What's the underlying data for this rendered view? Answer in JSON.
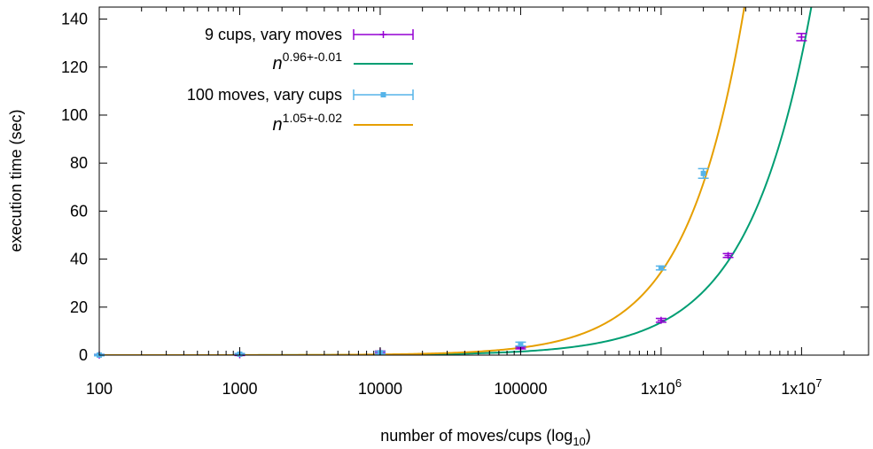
{
  "chart_data": {
    "type": "scatter",
    "xscale": "log",
    "xlim": [
      100,
      30000000
    ],
    "ylim": [
      0,
      145
    ],
    "xlabel": "number of moves/cups (log",
    "xlabel_sub": "10",
    "xlabel_suffix": ")",
    "ylabel": "execution time (sec)",
    "grid": false,
    "legend_position": "top-left",
    "x_ticks": [
      {
        "value": 100,
        "label": "100"
      },
      {
        "value": 1000,
        "label": "1000"
      },
      {
        "value": 10000,
        "label": "10000"
      },
      {
        "value": 100000,
        "label": "100000"
      },
      {
        "value": 1000000,
        "label": "1x10",
        "sup": "6"
      },
      {
        "value": 10000000,
        "label": "1x10",
        "sup": "7"
      }
    ],
    "y_ticks": [
      0,
      20,
      40,
      60,
      80,
      100,
      120,
      140
    ],
    "series": [
      {
        "name": "9 cups, vary moves",
        "kind": "points",
        "color": "#9400d3",
        "marker": "plus",
        "x": [
          100,
          1000,
          10000,
          100000,
          1000000,
          3000000,
          10000000
        ],
        "y": [
          0.02,
          0.15,
          1.4,
          3.0,
          14.5,
          41.5,
          132.5
        ],
        "err": [
          0.3,
          0.3,
          0.3,
          0.4,
          0.8,
          0.8,
          1.5
        ]
      },
      {
        "name": "n",
        "name_sup": "0.96+-0.01",
        "kind": "fit",
        "color": "#009e73",
        "exponent": 0.96,
        "coef": 2.37e-05
      },
      {
        "name": "100 moves, vary cups",
        "kind": "points",
        "color": "#56b4e9",
        "marker": "square",
        "x": [
          100,
          1000,
          10000,
          100000,
          1000000,
          2000000
        ],
        "y": [
          0.02,
          0.4,
          1.0,
          4.6,
          36.3,
          75.7
        ],
        "err": [
          0.3,
          0.3,
          0.5,
          0.8,
          0.8,
          2.0
        ]
      },
      {
        "name": "n",
        "name_sup": "1.05+-0.02",
        "kind": "fit",
        "color": "#e69f00",
        "exponent": 1.05,
        "coef": 1.734e-05
      }
    ]
  }
}
